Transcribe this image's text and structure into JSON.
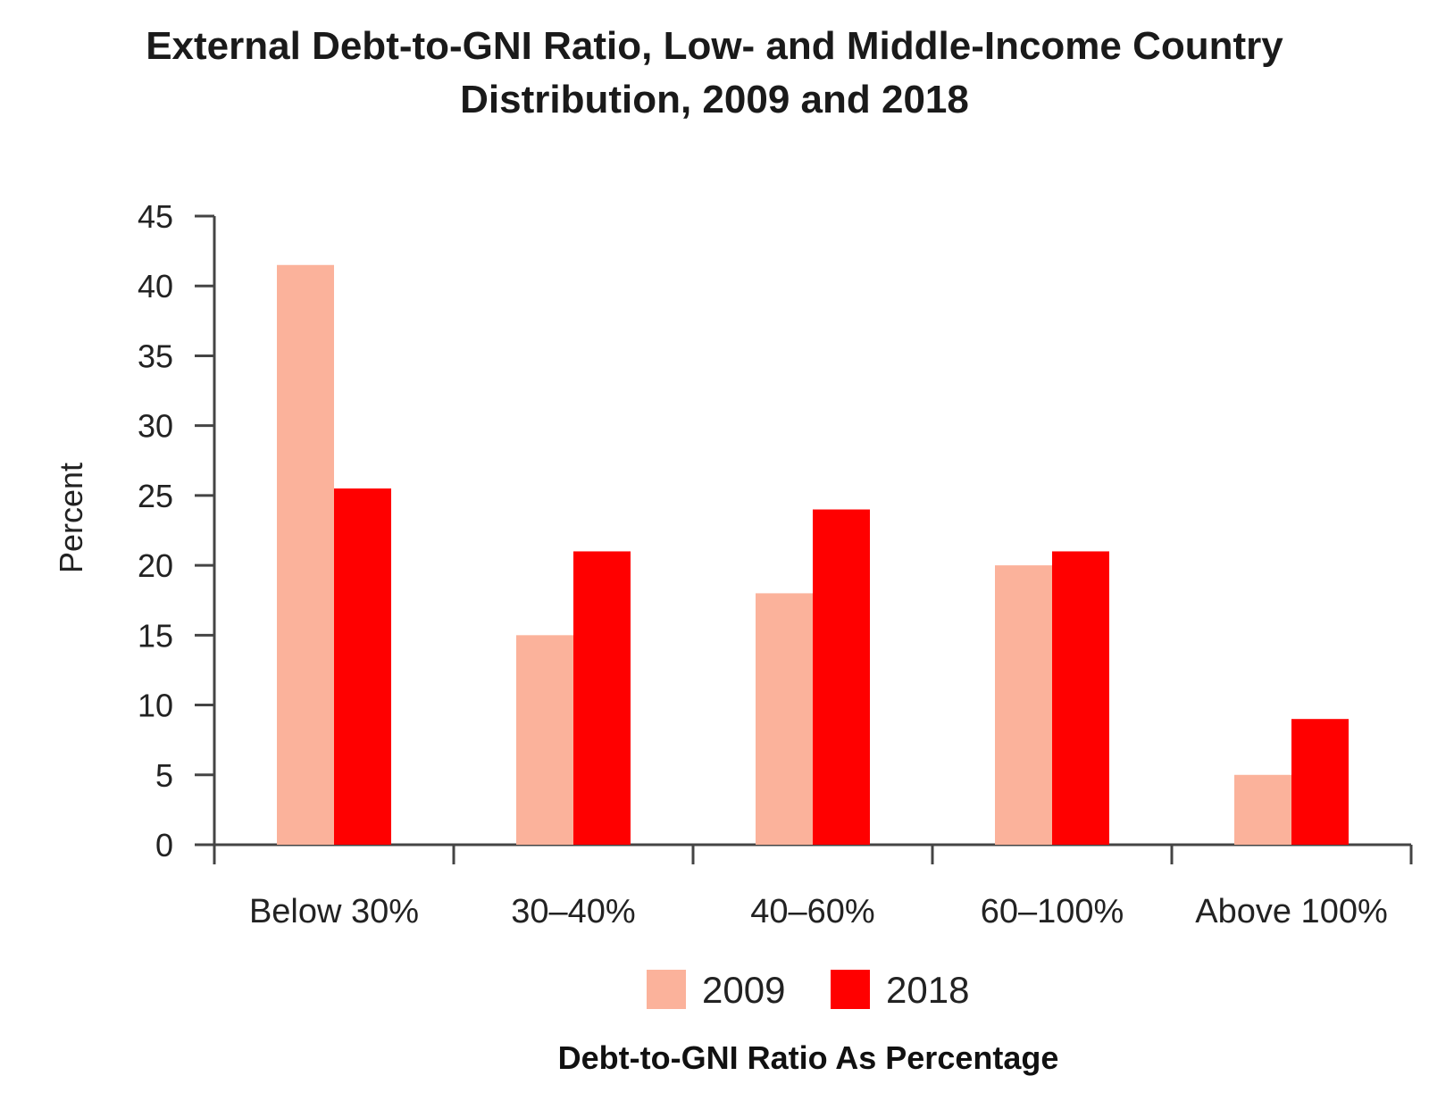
{
  "chart_data": {
    "type": "bar",
    "title_lines": [
      "External Debt-to-GNI Ratio, Low- and Middle-Income Country",
      "Distribution, 2009 and 2018"
    ],
    "xlabel": "Debt-to-GNI Ratio As Percentage",
    "ylabel": "Percent",
    "categories": [
      "Below 30%",
      "30–40%",
      "40–60%",
      "60–100%",
      "Above 100%"
    ],
    "ylim": [
      0,
      45
    ],
    "yticks": [
      0,
      5,
      10,
      15,
      20,
      25,
      30,
      35,
      40,
      45
    ],
    "grid": false,
    "legend_position": "bottom-center",
    "series": [
      {
        "name": "2009",
        "color": "#fbb29b",
        "values": [
          41.5,
          15,
          18,
          20,
          5
        ]
      },
      {
        "name": "2018",
        "color": "#ff0000",
        "values": [
          25.5,
          21,
          24,
          21,
          9
        ]
      }
    ]
  }
}
